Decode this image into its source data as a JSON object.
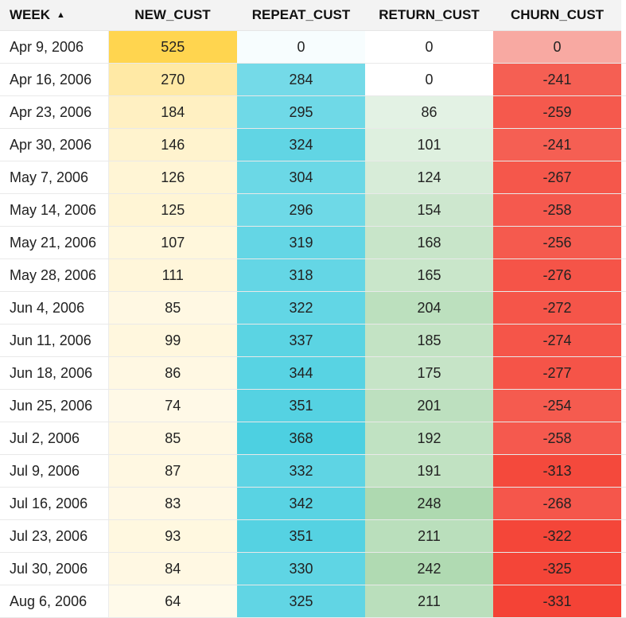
{
  "headers": {
    "week": "WEEK",
    "sort_indicator": "▲",
    "new_cust": "NEW_CUST",
    "repeat_cust": "REPEAT_CUST",
    "return_cust": "RETURN_CUST",
    "churn_cust": "CHURN_CUST"
  },
  "colors": {
    "new_cust_scale": [
      "#fffaea",
      "#ffd54f"
    ],
    "repeat_cust_scale": [
      "#f7fdfe",
      "#4dd0e1"
    ],
    "return_cust_scale": [
      "#ffffff",
      "#aed9b0"
    ],
    "churn_cust_scale": [
      "#f44336",
      "#f8a9a2"
    ],
    "header_background": "#f3f3f3"
  },
  "rows": [
    {
      "week": "Apr 9, 2006",
      "new_cust": "525",
      "repeat_cust": "0",
      "return_cust": "0",
      "churn_cust": "0"
    },
    {
      "week": "Apr 16, 2006",
      "new_cust": "270",
      "repeat_cust": "284",
      "return_cust": "0",
      "churn_cust": "-241"
    },
    {
      "week": "Apr 23, 2006",
      "new_cust": "184",
      "repeat_cust": "295",
      "return_cust": "86",
      "churn_cust": "-259"
    },
    {
      "week": "Apr 30, 2006",
      "new_cust": "146",
      "repeat_cust": "324",
      "return_cust": "101",
      "churn_cust": "-241"
    },
    {
      "week": "May 7, 2006",
      "new_cust": "126",
      "repeat_cust": "304",
      "return_cust": "124",
      "churn_cust": "-267"
    },
    {
      "week": "May 14, 2006",
      "new_cust": "125",
      "repeat_cust": "296",
      "return_cust": "154",
      "churn_cust": "-258"
    },
    {
      "week": "May 21, 2006",
      "new_cust": "107",
      "repeat_cust": "319",
      "return_cust": "168",
      "churn_cust": "-256"
    },
    {
      "week": "May 28, 2006",
      "new_cust": "111",
      "repeat_cust": "318",
      "return_cust": "165",
      "churn_cust": "-276"
    },
    {
      "week": "Jun 4, 2006",
      "new_cust": "85",
      "repeat_cust": "322",
      "return_cust": "204",
      "churn_cust": "-272"
    },
    {
      "week": "Jun 11, 2006",
      "new_cust": "99",
      "repeat_cust": "337",
      "return_cust": "185",
      "churn_cust": "-274"
    },
    {
      "week": "Jun 18, 2006",
      "new_cust": "86",
      "repeat_cust": "344",
      "return_cust": "175",
      "churn_cust": "-277"
    },
    {
      "week": "Jun 25, 2006",
      "new_cust": "74",
      "repeat_cust": "351",
      "return_cust": "201",
      "churn_cust": "-254"
    },
    {
      "week": "Jul 2, 2006",
      "new_cust": "85",
      "repeat_cust": "368",
      "return_cust": "192",
      "churn_cust": "-258"
    },
    {
      "week": "Jul 9, 2006",
      "new_cust": "87",
      "repeat_cust": "332",
      "return_cust": "191",
      "churn_cust": "-313"
    },
    {
      "week": "Jul 16, 2006",
      "new_cust": "83",
      "repeat_cust": "342",
      "return_cust": "248",
      "churn_cust": "-268"
    },
    {
      "week": "Jul 23, 2006",
      "new_cust": "93",
      "repeat_cust": "351",
      "return_cust": "211",
      "churn_cust": "-322"
    },
    {
      "week": "Jul 30, 2006",
      "new_cust": "84",
      "repeat_cust": "330",
      "return_cust": "242",
      "churn_cust": "-325"
    },
    {
      "week": "Aug 6, 2006",
      "new_cust": "64",
      "repeat_cust": "325",
      "return_cust": "211",
      "churn_cust": "-331"
    }
  ]
}
